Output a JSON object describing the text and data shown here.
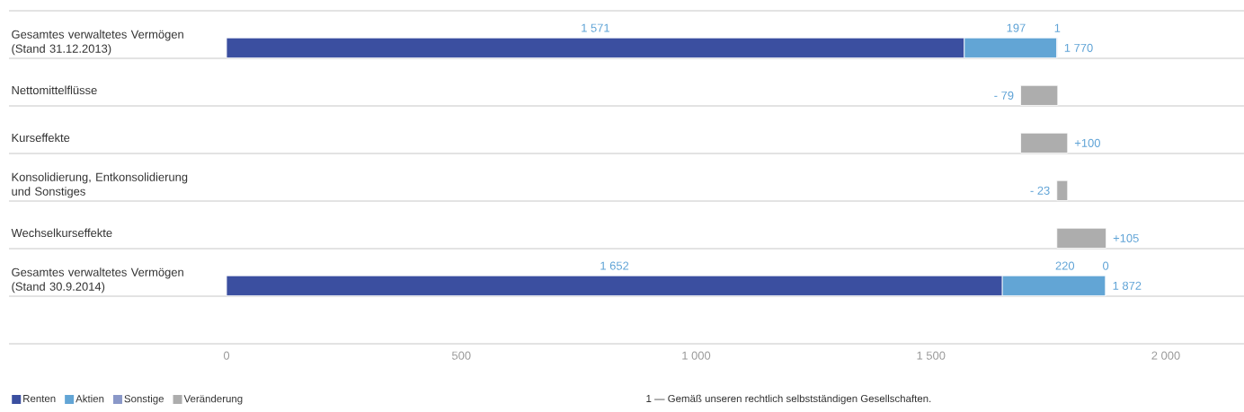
{
  "chart_data": {
    "type": "bar",
    "orientation": "horizontal",
    "stacked": true,
    "categories": [
      "Gesamtes verwaltetes Vermögen (Stand 31.12.2013)",
      "Nettomittelflüsse",
      "Kurseffekte",
      "Konsolidierung, Entkonsolidierung und Sonstiges",
      "Wechselkurseffekte",
      "Gesamtes verwaltetes Vermögen (Stand 30.9.2014)"
    ],
    "series": [
      {
        "name": "Renten",
        "color": "#3b4fa0",
        "values": [
          1571,
          null,
          null,
          null,
          null,
          1652
        ],
        "value_labels": [
          "1 571",
          null,
          null,
          null,
          null,
          "1 652"
        ]
      },
      {
        "name": "Aktien",
        "color": "#62a5d5",
        "values": [
          197,
          null,
          null,
          null,
          null,
          220
        ],
        "value_labels": [
          "197",
          null,
          null,
          null,
          null,
          "220"
        ]
      },
      {
        "name": "Sonstige",
        "color": "#8a98c8",
        "values": [
          1,
          null,
          null,
          null,
          null,
          0
        ],
        "value_labels": [
          "1",
          null,
          null,
          null,
          null,
          "0"
        ]
      },
      {
        "name": "Veränderung",
        "color": "#adadad",
        "values": [
          null,
          -79,
          100,
          -23,
          105,
          null
        ],
        "base": [
          null,
          1770,
          1691,
          1791,
          1768,
          null
        ],
        "value_labels": [
          null,
          "- 79",
          "+100",
          "- 23",
          "+105",
          null
        ]
      }
    ],
    "totals": [
      "1 770",
      null,
      null,
      null,
      null,
      "1 872"
    ],
    "xlim": [
      0,
      2000
    ],
    "xticks": [
      0,
      500,
      {
        "value": 1000,
        "label": "1 000"
      },
      {
        "value": 1500,
        "label": "1 500"
      },
      {
        "value": 2000,
        "label": "2 000"
      }
    ],
    "legend": "bottom left",
    "annotations": [
      "1 — Gemäß unseren rechtlich selbstständigen Gesellschaften."
    ]
  }
}
